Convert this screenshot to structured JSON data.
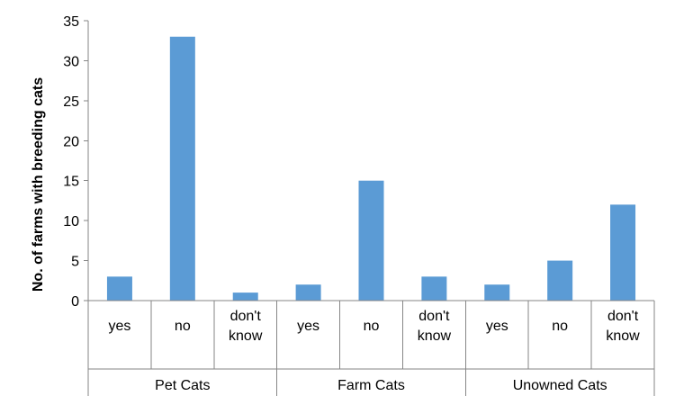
{
  "chart_data": {
    "type": "bar",
    "title": "",
    "xlabel": "",
    "ylabel": "No. of farms with breeding cats",
    "ylim": [
      0,
      35
    ],
    "yticks": [
      0,
      5,
      10,
      15,
      20,
      25,
      30,
      35
    ],
    "grid": false,
    "legend": "none",
    "bar_color": "#5B9BD5",
    "groups": [
      {
        "name": "Pet Cats",
        "categories": [
          [
            "yes"
          ],
          [
            "no"
          ],
          [
            "don't",
            "know"
          ]
        ],
        "values": [
          3,
          33,
          1
        ]
      },
      {
        "name": "Farm Cats",
        "categories": [
          [
            "yes"
          ],
          [
            "no"
          ],
          [
            "don't",
            "know"
          ]
        ],
        "values": [
          2,
          15,
          3
        ]
      },
      {
        "name": "Unowned Cats",
        "categories": [
          [
            "yes"
          ],
          [
            "no"
          ],
          [
            "don't",
            "know"
          ]
        ],
        "values": [
          2,
          5,
          12
        ]
      }
    ]
  }
}
